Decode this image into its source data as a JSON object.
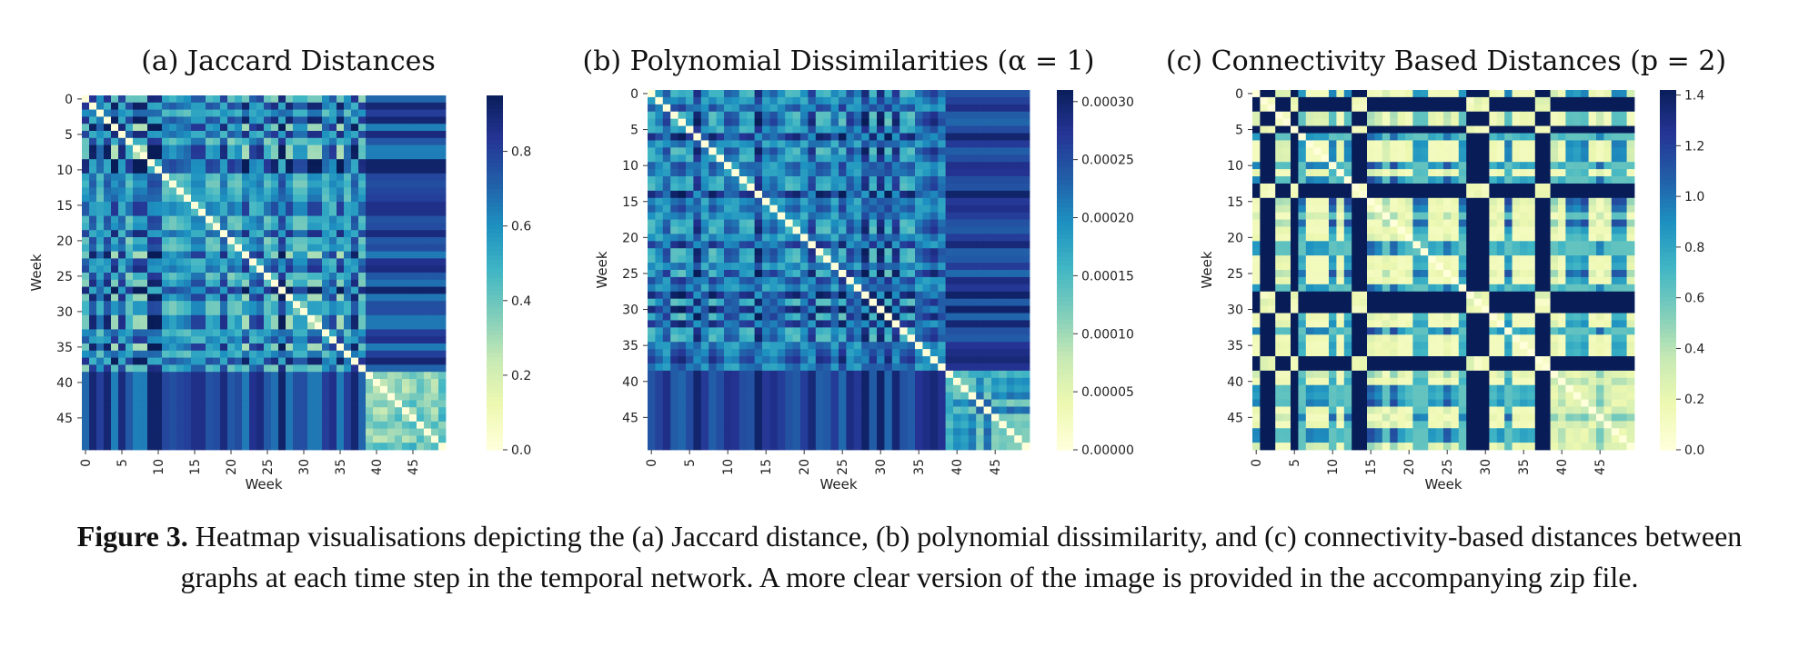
{
  "caption": {
    "label": "Figure 3.",
    "text": "Heatmap visualisations depicting the (a) Jaccard distance, (b) polynomial dissimilarity, and (c) connectivity-based distances between graphs at each time step in the temporal network. A more clear version of the image is provided in the accompanying zip file."
  },
  "chart_data": [
    {
      "type": "heatmap",
      "title": "(a) Jaccard Distances",
      "xlabel": "Week",
      "ylabel": "Week",
      "size": 50,
      "x_ticks": [
        "0",
        "5",
        "10",
        "15",
        "20",
        "25",
        "30",
        "35",
        "40",
        "45"
      ],
      "y_ticks": [
        "0",
        "5",
        "10",
        "15",
        "20",
        "25",
        "30",
        "35",
        "40",
        "45"
      ],
      "colorbar": {
        "min": 0.0,
        "max": 0.95,
        "ticks": [
          "0.0",
          "0.2",
          "0.4",
          "0.6",
          "0.8"
        ],
        "tick_values": [
          0.0,
          0.2,
          0.4,
          0.6,
          0.8
        ]
      },
      "colormap": "YlGnBu",
      "block_boundary_week": 39,
      "values_note_visible": "symmetric matrix, zero diagonal"
    },
    {
      "type": "heatmap",
      "title": "(b) Polynomial Dissimilarities (α = 1)",
      "xlabel": "Week",
      "ylabel": "Week",
      "size": 50,
      "x_ticks": [
        "0",
        "5",
        "10",
        "15",
        "20",
        "25",
        "30",
        "35",
        "40",
        "45"
      ],
      "y_ticks": [
        "0",
        "5",
        "10",
        "15",
        "20",
        "25",
        "30",
        "35",
        "40",
        "45"
      ],
      "colorbar": {
        "min": 0.0,
        "max": 0.00031,
        "ticks": [
          "0.00000",
          "0.00005",
          "0.00010",
          "0.00015",
          "0.00020",
          "0.00025",
          "0.00030"
        ],
        "tick_values": [
          0.0,
          5e-05,
          0.0001,
          0.00015,
          0.0002,
          0.00025,
          0.0003
        ]
      },
      "colormap": "YlGnBu",
      "block_boundary_week": 39
    },
    {
      "type": "heatmap",
      "title": "(c) Connectivity Based Distances (p = 2)",
      "xlabel": "Week",
      "ylabel": "Week",
      "size": 50,
      "x_ticks": [
        "0",
        "5",
        "10",
        "15",
        "20",
        "25",
        "30",
        "35",
        "40",
        "45"
      ],
      "y_ticks": [
        "0",
        "5",
        "10",
        "15",
        "20",
        "25",
        "30",
        "35",
        "40",
        "45"
      ],
      "colorbar": {
        "min": 0.0,
        "max": 1.42,
        "ticks": [
          "0.0",
          "0.2",
          "0.4",
          "0.6",
          "0.8",
          "1.0",
          "1.2",
          "1.4"
        ],
        "tick_values": [
          0.0,
          0.2,
          0.4,
          0.6,
          0.8,
          1.0,
          1.2,
          1.4
        ]
      },
      "colormap": "YlGnBu",
      "dark_weeks": [
        1,
        2,
        5,
        13,
        14,
        28,
        29,
        30,
        37,
        38
      ]
    }
  ]
}
